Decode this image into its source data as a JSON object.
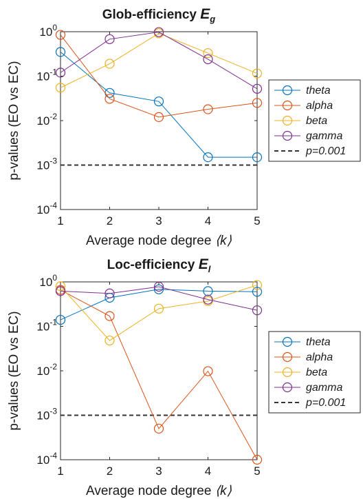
{
  "chart_data": [
    {
      "type": "line",
      "title": "Glob-efficiency",
      "title_symbol": "E",
      "title_subscript": "g",
      "xlabel": "Average node degree",
      "xlabel_symbol": "⟨k⟩",
      "ylabel": "p-values (EO vs EC)",
      "yscale": "log",
      "ylim": [
        0.0001,
        1
      ],
      "xlim": [
        1,
        5
      ],
      "x": [
        1,
        2,
        3,
        4,
        5
      ],
      "xtick_labels": [
        "1",
        "2",
        "3",
        "4",
        "5"
      ],
      "ytick_labels": [
        {
          "base": "10",
          "exp": "-4"
        },
        {
          "base": "10",
          "exp": "-3"
        },
        {
          "base": "10",
          "exp": "-2"
        },
        {
          "base": "10",
          "exp": "-1"
        },
        {
          "base": "10",
          "exp": "0"
        }
      ],
      "grid": false,
      "legend_position": "outside-right",
      "series": [
        {
          "name": "theta",
          "color": "#0072bd",
          "marker": "circle",
          "values": [
            0.35,
            0.042,
            0.027,
            0.0015,
            0.0015
          ]
        },
        {
          "name": "alpha",
          "color": "#d95319",
          "marker": "circle",
          "values": [
            0.85,
            0.031,
            0.012,
            0.018,
            0.025
          ]
        },
        {
          "name": "beta",
          "color": "#edb120",
          "marker": "circle",
          "values": [
            0.055,
            0.19,
            0.92,
            0.33,
            0.115
          ]
        },
        {
          "name": "gamma",
          "color": "#7e2f8e",
          "marker": "circle",
          "values": [
            0.12,
            0.68,
            0.98,
            0.24,
            0.052
          ]
        }
      ],
      "threshold": {
        "name": "p=0.001",
        "value": 0.001,
        "color": "#333333",
        "style": "dashed"
      }
    },
    {
      "type": "line",
      "title": "Loc-efficiency",
      "title_symbol": "E",
      "title_subscript": "l",
      "xlabel": "Average node degree",
      "xlabel_symbol": "⟨k⟩",
      "ylabel": "p-values (EO vs EC)",
      "yscale": "log",
      "ylim": [
        0.0001,
        1
      ],
      "xlim": [
        1,
        5
      ],
      "x": [
        1,
        2,
        3,
        4,
        5
      ],
      "xtick_labels": [
        "1",
        "2",
        "3",
        "4",
        "5"
      ],
      "ytick_labels": [
        {
          "base": "10",
          "exp": "-4"
        },
        {
          "base": "10",
          "exp": "-3"
        },
        {
          "base": "10",
          "exp": "-2"
        },
        {
          "base": "10",
          "exp": "-1"
        },
        {
          "base": "10",
          "exp": "0"
        }
      ],
      "grid": false,
      "legend_position": "outside-right",
      "series": [
        {
          "name": "theta",
          "color": "#0072bd",
          "marker": "circle",
          "values": [
            0.14,
            0.44,
            0.68,
            0.62,
            0.6
          ]
        },
        {
          "name": "alpha",
          "color": "#d95319",
          "marker": "circle",
          "values": [
            0.66,
            0.17,
            0.0005,
            0.0098,
            0.0001
          ]
        },
        {
          "name": "beta",
          "color": "#edb120",
          "marker": "circle",
          "values": [
            0.8,
            0.048,
            0.25,
            0.37,
            0.85
          ]
        },
        {
          "name": "gamma",
          "color": "#7e2f8e",
          "marker": "circle",
          "values": [
            0.62,
            0.55,
            0.78,
            0.4,
            0.23
          ]
        }
      ],
      "threshold": {
        "name": "p=0.001",
        "value": 0.001,
        "color": "#333333",
        "style": "dashed"
      }
    }
  ]
}
